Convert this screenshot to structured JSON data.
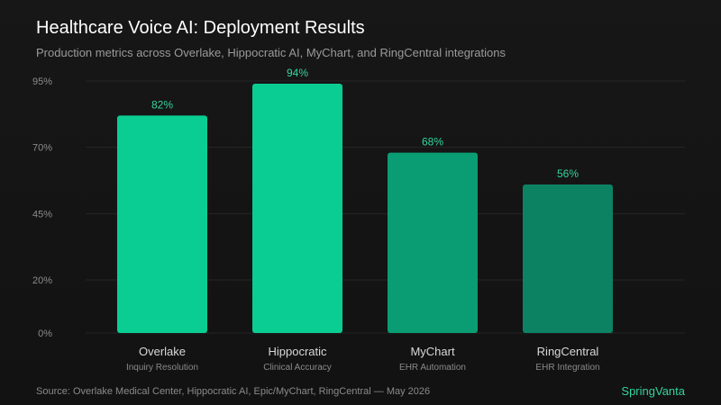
{
  "header": {
    "title": "Healthcare Voice AI: Deployment Results",
    "subtitle": "Production metrics across Overlake, Hippocratic AI, MyChart, and RingCentral integrations"
  },
  "footer": {
    "source": "Source: Overlake Medical Center, Hippocratic AI, Epic/MyChart, RingCentral — May 2026",
    "brand": "SpringVanta"
  },
  "colors": {
    "bar_bright": "#0acd93",
    "bar_mid": "#0a9d74",
    "bar_dark": "#0c8263",
    "label": "#34d39e",
    "tick": "#8c8c8c",
    "category": "#d8d8d8",
    "sublabel": "#8a8a8a",
    "grid": "#262626"
  },
  "chart_data": {
    "type": "bar",
    "categories": [
      "Overlake",
      "Hippocratic",
      "MyChart",
      "RingCentral"
    ],
    "sublabels": [
      "Inquiry Resolution",
      "Clinical Accuracy",
      "EHR Automation",
      "EHR Integration"
    ],
    "values": [
      82,
      94,
      68,
      56
    ],
    "value_labels": [
      "82%",
      "94%",
      "68%",
      "56%"
    ],
    "ylim": [
      0,
      95
    ],
    "yticks": [
      0,
      20,
      45,
      70,
      95
    ],
    "ytick_labels": [
      "0%",
      "20%",
      "45%",
      "70%",
      "95%"
    ],
    "grid": true
  }
}
